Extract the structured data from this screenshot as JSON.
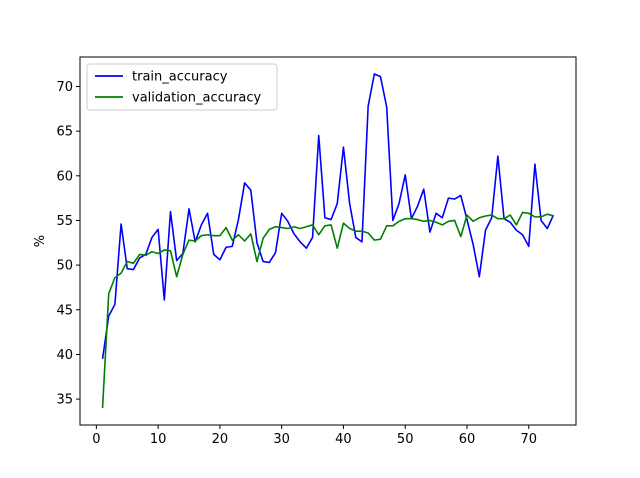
{
  "chart_data": {
    "type": "line",
    "title": "",
    "xlabel": "",
    "ylabel": "%",
    "xlim": [
      -2.65,
      77.65
    ],
    "ylim": [
      32.1,
      73.3
    ],
    "xticks": [
      0,
      10,
      20,
      30,
      40,
      50,
      60,
      70
    ],
    "yticks": [
      35,
      40,
      45,
      50,
      55,
      60,
      65,
      70
    ],
    "grid": false,
    "legend_position": "top-left",
    "series": [
      {
        "name": "train_accuracy",
        "color": "#0000ff",
        "x": [
          1,
          2,
          3,
          4,
          5,
          6,
          7,
          8,
          9,
          10,
          11,
          12,
          13,
          14,
          15,
          16,
          17,
          18,
          19,
          20,
          21,
          22,
          23,
          24,
          25,
          26,
          27,
          28,
          29,
          30,
          31,
          32,
          33,
          34,
          35,
          36,
          37,
          38,
          39,
          40,
          41,
          42,
          43,
          44,
          45,
          46,
          47,
          48,
          49,
          50,
          51,
          52,
          53,
          54,
          55,
          56,
          57,
          58,
          59,
          60,
          61,
          62,
          63,
          64,
          65,
          66,
          67,
          68,
          69,
          70,
          71,
          72,
          73,
          74
        ],
        "values": [
          39.5,
          44.3,
          45.6,
          54.6,
          49.6,
          49.5,
          50.8,
          51.2,
          53.1,
          54.0,
          46.1,
          56.0,
          50.5,
          51.3,
          56.3,
          52.6,
          54.5,
          55.8,
          51.2,
          50.6,
          52.0,
          52.1,
          55.1,
          59.2,
          58.4,
          52.5,
          50.4,
          50.3,
          51.4,
          55.8,
          54.9,
          53.5,
          52.6,
          51.9,
          53.1,
          64.5,
          55.3,
          55.1,
          56.9,
          63.2,
          56.9,
          53.1,
          52.6,
          67.8,
          71.4,
          71.1,
          67.7,
          55.0,
          56.9,
          60.1,
          55.2,
          56.6,
          58.5,
          53.7,
          55.8,
          55.3,
          57.5,
          57.4,
          57.8,
          55.1,
          52.3,
          48.7,
          53.9,
          55.3,
          62.2,
          55.2,
          54.8,
          53.9,
          53.4,
          52.1,
          61.3,
          55.0,
          54.1,
          55.6
        ]
      },
      {
        "name": "validation_accuracy",
        "color": "#008000",
        "x": [
          1,
          2,
          3,
          4,
          5,
          6,
          7,
          8,
          9,
          10,
          11,
          12,
          13,
          14,
          15,
          16,
          17,
          18,
          19,
          20,
          21,
          22,
          23,
          24,
          25,
          26,
          27,
          28,
          29,
          30,
          31,
          32,
          33,
          34,
          35,
          36,
          37,
          38,
          39,
          40,
          41,
          42,
          43,
          44,
          45,
          46,
          47,
          48,
          49,
          50,
          51,
          52,
          53,
          54,
          55,
          56,
          57,
          58,
          59,
          60,
          61,
          62,
          63,
          64,
          65,
          66,
          67,
          68,
          69,
          70,
          71,
          72,
          73,
          74
        ],
        "values": [
          34.0,
          46.8,
          48.6,
          49.1,
          50.4,
          50.2,
          51.2,
          51.1,
          51.5,
          51.3,
          51.7,
          51.6,
          48.7,
          51.2,
          52.8,
          52.7,
          53.3,
          53.4,
          53.3,
          53.3,
          54.2,
          52.8,
          53.4,
          52.7,
          53.5,
          50.4,
          53.0,
          54.0,
          54.3,
          54.2,
          54.1,
          54.3,
          54.1,
          54.3,
          54.5,
          53.4,
          54.4,
          54.5,
          51.9,
          54.7,
          54.1,
          53.8,
          53.8,
          53.6,
          52.8,
          52.9,
          54.4,
          54.4,
          54.9,
          55.2,
          55.2,
          55.1,
          54.9,
          55.0,
          54.8,
          54.5,
          54.9,
          55.0,
          53.2,
          55.6,
          54.9,
          55.3,
          55.5,
          55.6,
          55.2,
          55.2,
          55.6,
          54.5,
          55.9,
          55.8,
          55.4,
          55.4,
          55.7,
          55.5
        ]
      }
    ]
  }
}
